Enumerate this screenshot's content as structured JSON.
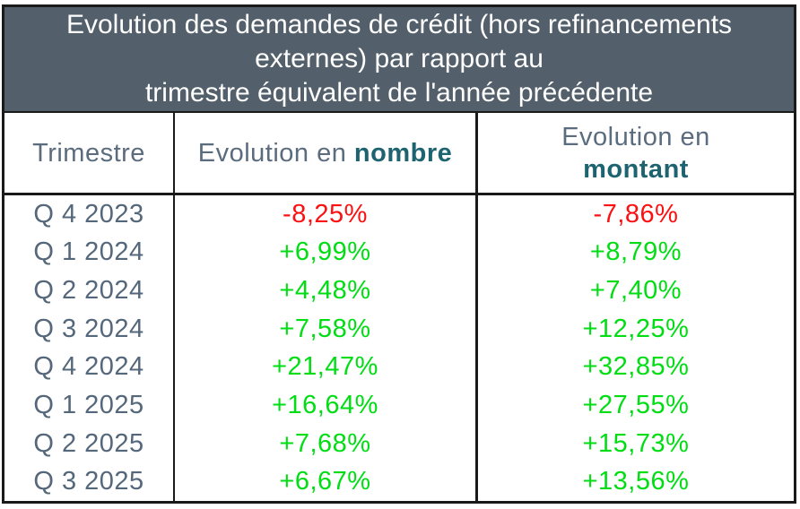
{
  "title": {
    "lines": [
      "Evolution des demandes de crédit (hors refinancements",
      "externes) par rapport au",
      "trimestre équivalent de l'année précédente"
    ]
  },
  "table": {
    "header": {
      "col1": "Trimestre",
      "col2_prefix": "Evolution en ",
      "col2_bold": "nombre",
      "col3_prefix": "Evolution en",
      "col3_bold": "montant"
    },
    "rows": [
      {
        "quarter": "Q 4 2023",
        "nombre": "-8,25%",
        "montant": "-7,86%"
      },
      {
        "quarter": "Q 1 2024",
        "nombre": "+6,99%",
        "montant": "+8,79%"
      },
      {
        "quarter": "Q 2 2024",
        "nombre": "+4,48%",
        "montant": "+7,40%"
      },
      {
        "quarter": "Q 3 2024",
        "nombre": "+7,58%",
        "montant": "+12,25%"
      },
      {
        "quarter": "Q 4 2024",
        "nombre": "+21,47%",
        "montant": "+32,85%"
      },
      {
        "quarter": "Q 1 2025",
        "nombre": "+16,64%",
        "montant": "+27,55%"
      },
      {
        "quarter": "Q 2 2025",
        "nombre": "+7,68%",
        "montant": "+15,73%"
      },
      {
        "quarter": "Q 3 2025",
        "nombre": "+6,67%",
        "montant": "+13,56%"
      }
    ]
  },
  "colors": {
    "title_band_bg": "#53606B",
    "title_text": "#FFFFFF",
    "header_text": "#5A6C7E",
    "header_bold_teal": "#1E6370",
    "quarter_text": "#55687B",
    "positive_value": "#00DE13",
    "negative_value": "#FB1111",
    "border": "#1A1A1A"
  },
  "chart_data": {
    "type": "table",
    "title": "Evolution des demandes de crédit (hors refinancements externes) par rapport au trimestre équivalent de l'année précédente",
    "columns": [
      "Trimestre",
      "Evolution en nombre",
      "Evolution en montant"
    ],
    "categories": [
      "Q 4 2023",
      "Q 1 2024",
      "Q 2 2024",
      "Q 3 2024",
      "Q 4 2024",
      "Q 1 2025",
      "Q 2 2025",
      "Q 3 2025"
    ],
    "series": [
      {
        "name": "Evolution en nombre",
        "values": [
          -8.25,
          6.99,
          4.48,
          7.58,
          21.47,
          16.64,
          7.68,
          6.67
        ]
      },
      {
        "name": "Evolution en montant",
        "values": [
          -7.86,
          8.79,
          7.4,
          12.25,
          32.85,
          27.55,
          15.73,
          13.56
        ]
      }
    ],
    "unit": "%",
    "value_format": "french decimal comma, explicit +/- sign",
    "negative_color": "#FB1111",
    "positive_color": "#00DE13"
  }
}
